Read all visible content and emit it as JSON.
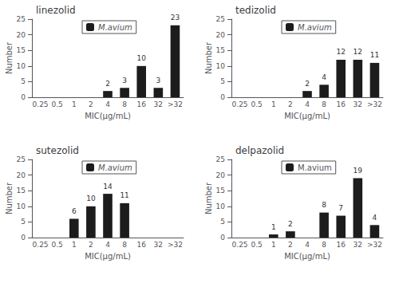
{
  "chart_data": [
    {
      "type": "bar",
      "title": "linezolid",
      "xlabel": "MIC(μg/mL)",
      "ylabel": "Number",
      "categories": [
        "0.25",
        "0.5",
        "1",
        "2",
        "4",
        "8",
        "16",
        "32",
        ">32"
      ],
      "series": [
        {
          "name": "M.avium",
          "color": "#1c1c1c",
          "values": [
            0,
            0,
            0,
            0,
            2,
            3,
            10,
            3,
            23
          ],
          "value_labels": [
            null,
            null,
            null,
            null,
            "2",
            "3",
            "10",
            "3",
            "23"
          ]
        }
      ],
      "ylim": [
        0,
        25
      ],
      "yticks": [
        0,
        5,
        10,
        15,
        20,
        25
      ],
      "grid": false,
      "legend": "top",
      "data_labels": true
    },
    {
      "type": "bar",
      "title": "tedizolid",
      "xlabel": "MIC(μg/mL)",
      "ylabel": "Number",
      "categories": [
        "0.25",
        "0.5",
        "1",
        "2",
        "4",
        "8",
        "16",
        "32",
        ">32"
      ],
      "series": [
        {
          "name": "M.avium",
          "color": "#1c1c1c",
          "values": [
            0,
            0,
            0,
            0,
            2,
            4,
            12,
            12,
            11
          ],
          "value_labels": [
            null,
            null,
            null,
            null,
            "2",
            "4",
            "12",
            "12",
            "11"
          ]
        }
      ],
      "ylim": [
        0,
        25
      ],
      "yticks": [
        0,
        5,
        10,
        15,
        20,
        25
      ],
      "grid": false,
      "legend": "top",
      "data_labels": true
    },
    {
      "type": "bar",
      "title": "sutezolid",
      "xlabel": "MIC(μg/mL)",
      "ylabel": "Number",
      "categories": [
        "0.25",
        "0.5",
        "1",
        "2",
        "4",
        "8",
        "16",
        "32",
        ">32"
      ],
      "series": [
        {
          "name": "M.avium",
          "color": "#1c1c1c",
          "values": [
            0,
            0,
            6,
            10,
            14,
            11,
            0,
            0,
            0
          ],
          "value_labels": [
            null,
            null,
            "6",
            "10",
            "14",
            "11",
            null,
            null,
            null
          ]
        }
      ],
      "ylim": [
        0,
        25
      ],
      "yticks": [
        0,
        5,
        10,
        15,
        20,
        25
      ],
      "grid": false,
      "legend": "top",
      "data_labels": true
    },
    {
      "type": "bar",
      "title": "delpazolid",
      "xlabel": "MIC(μg/mL)",
      "ylabel": "Number",
      "categories": [
        "0.25",
        "0.5",
        "1",
        "2",
        "4",
        "8",
        "16",
        "32",
        ">32"
      ],
      "series": [
        {
          "name": "M.avium",
          "color": "#1c1c1c",
          "values": [
            0,
            0,
            1,
            2,
            0,
            8,
            7,
            19,
            4
          ],
          "value_labels": [
            null,
            null,
            "1",
            "2",
            null,
            "8",
            "7",
            "19",
            "4"
          ]
        }
      ],
      "ylim": [
        0,
        25
      ],
      "yticks": [
        0,
        5,
        10,
        15,
        20,
        25
      ],
      "grid": false,
      "legend": "top",
      "data_labels": true
    }
  ]
}
